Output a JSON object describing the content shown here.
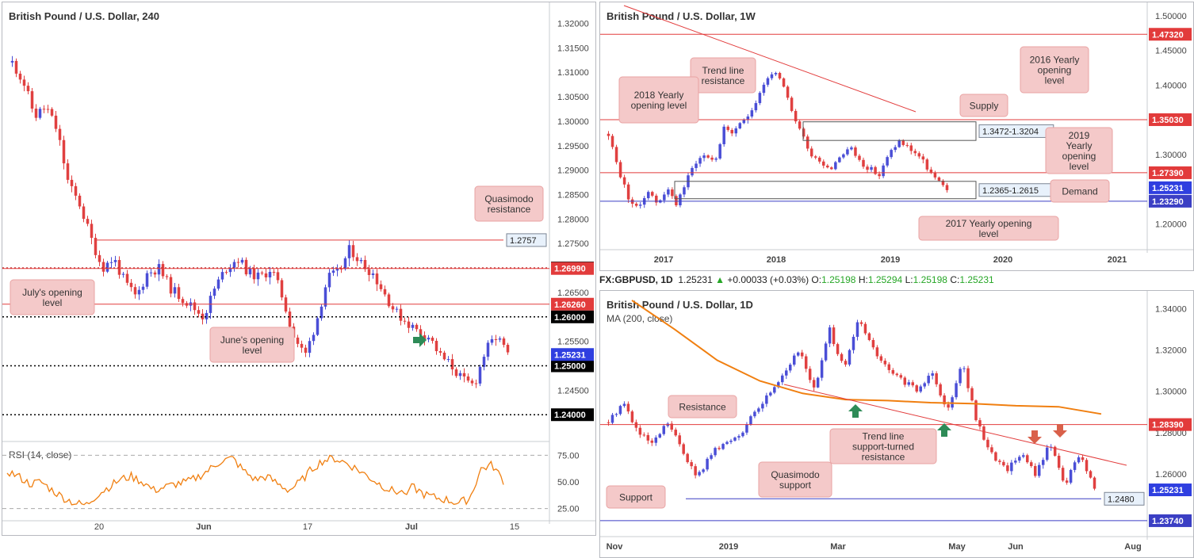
{
  "palette": {
    "up": "#4a4ed6",
    "down": "#e04040",
    "res": "#e23b3b",
    "sup": "#3b3fc4",
    "ma": "#f07f10",
    "rsi": "#f07f10",
    "label_fill": "#f4c9c9",
    "label_stroke": "#e9a3a3",
    "arrow_green": "#2e8b57",
    "arrow_red": "#d9604a"
  },
  "info_bar": {
    "symbol": "FX:GBPUSD, 1D",
    "last": "1.25231",
    "arrow": "▲",
    "change": "+0.00033 (+0.03%)",
    "o_label": "O:",
    "o": "1.25198",
    "h_label": "H:",
    "h": "1.25294",
    "l_label": "L:",
    "l": "1.25198",
    "c_label": "C:",
    "c": "1.25231"
  },
  "panels": {
    "left": {
      "title": "British Pound / U.S. Dollar, 240",
      "rsi_label": "RSI (14, close)"
    },
    "top_right": {
      "title": "British Pound / U.S. Dollar, 1W"
    },
    "bottom_right": {
      "title": "British Pound / U.S. Dollar, 1D",
      "ma_label": "MA (200, close)"
    }
  },
  "chart_data": [
    {
      "id": "h4",
      "type": "candlestick",
      "title": "British Pound / U.S. Dollar, 240",
      "ylim": [
        1.2355,
        1.323
      ],
      "y_ticks": [
        "1.32000",
        "1.31500",
        "1.31000",
        "1.30500",
        "1.30000",
        "1.29500",
        "1.29000",
        "1.28500",
        "1.28000",
        "1.27500",
        "1.27000",
        "1.26500",
        "1.26000",
        "1.25500",
        "1.25000",
        "1.24500",
        "1.24000"
      ],
      "x_ticks": [
        "20",
        "Jun",
        "17",
        "Jul",
        "15"
      ],
      "levels": [
        {
          "value": 1.2757,
          "label": "1.2757",
          "kind": "zone_box",
          "style": "solid",
          "color": "#e23b3b"
        },
        {
          "value": 1.27,
          "label": "1.27000",
          "style": "dotted",
          "color": "#b71c1c",
          "tag_bg": "#000000"
        },
        {
          "value": 1.2699,
          "label": "1.26990",
          "style": "solid",
          "color": "#e23b3b",
          "tag_bg": "#e23b3b"
        },
        {
          "value": 1.2626,
          "label": "1.26260",
          "style": "solid",
          "color": "#e23b3b",
          "tag_bg": "#e23b3b"
        },
        {
          "value": 1.26,
          "label": "1.26000",
          "style": "dotted",
          "color": "#000000",
          "tag_bg": "#000000"
        },
        {
          "value": 1.25,
          "label": "1.25000",
          "style": "dotted",
          "color": "#000000",
          "tag_bg": "#000000"
        },
        {
          "value": 1.24,
          "label": "1.24000",
          "style": "dotted",
          "color": "#000000",
          "tag_bg": "#000000"
        }
      ],
      "last": {
        "value": 1.25231,
        "label": "1.25231"
      },
      "annotations": [
        "Quasimodo resistance",
        "July's opening level",
        "June's opening level"
      ],
      "path": [
        1.312,
        1.308,
        1.301,
        1.303,
        1.298,
        1.287,
        1.283,
        1.276,
        1.27,
        1.272,
        1.267,
        1.264,
        1.269,
        1.27,
        1.266,
        1.264,
        1.262,
        1.26,
        1.266,
        1.27,
        1.272,
        1.269,
        1.268,
        1.27,
        1.264,
        1.256,
        1.252,
        1.259,
        1.268,
        1.269,
        1.274,
        1.271,
        1.269,
        1.265,
        1.261,
        1.259,
        1.257,
        1.256,
        1.252,
        1.25,
        1.247,
        1.246,
        1.253,
        1.256,
        1.2523
      ],
      "rsi": {
        "label": "RSI (14, close)",
        "ticks": [
          "75.00",
          "50.00",
          "25.00"
        ],
        "ylim": [
          15,
          85
        ],
        "values": [
          60,
          55,
          48,
          50,
          42,
          35,
          30,
          28,
          38,
          45,
          52,
          55,
          50,
          42,
          45,
          48,
          50,
          55,
          62,
          70,
          72,
          60,
          52,
          55,
          48,
          42,
          50,
          62,
          70,
          72,
          68,
          62,
          55,
          48,
          42,
          40,
          45,
          38,
          35,
          33,
          30,
          34,
          62,
          66,
          51
        ]
      }
    },
    {
      "id": "weekly",
      "type": "candlestick",
      "title": "British Pound / U.S. Dollar, 1W",
      "ylim": [
        1.17,
        1.51
      ],
      "y_ticks": [
        "1.50000",
        "1.45000",
        "1.40000",
        "1.35000",
        "1.30000",
        "1.25000",
        "1.20000"
      ],
      "x_ticks": [
        "2017",
        "2018",
        "2019",
        "2020",
        "2021"
      ],
      "levels": [
        {
          "value": 1.4732,
          "label": "1.47320",
          "style": "solid",
          "color": "#e23b3b",
          "tag_bg": "#e23b3b"
        },
        {
          "value": 1.3503,
          "label": "1.35030",
          "style": "solid",
          "color": "#e23b3b",
          "tag_bg": "#e23b3b"
        },
        {
          "value": 1.2739,
          "label": "1.27390",
          "style": "solid",
          "color": "#e23b3b",
          "tag_bg": "#e23b3b"
        },
        {
          "value": 1.2329,
          "label": "1.23290",
          "style": "solid",
          "color": "#3b3fc4",
          "tag_bg": "#3b3fc4"
        }
      ],
      "zones": [
        {
          "label": "1.3472-1.3204",
          "high": 1.3472,
          "low": 1.3204
        },
        {
          "label": "1.2365-1.2615",
          "high": 1.2615,
          "low": 1.2365
        }
      ],
      "last": {
        "value": 1.25231,
        "label": "1.25231"
      },
      "annotations": [
        "Trend line resistance",
        "2018 Yearly opening level",
        "2016 Yearly opening level",
        "Supply",
        "2019 Yearly opening level",
        "Demand",
        "2017 Yearly opening level"
      ],
      "path": [
        1.33,
        1.28,
        1.24,
        1.22,
        1.25,
        1.23,
        1.25,
        1.23,
        1.26,
        1.29,
        1.3,
        1.29,
        1.34,
        1.33,
        1.35,
        1.37,
        1.4,
        1.42,
        1.4,
        1.36,
        1.33,
        1.3,
        1.29,
        1.28,
        1.3,
        1.31,
        1.29,
        1.28,
        1.27,
        1.3,
        1.32,
        1.31,
        1.3,
        1.28,
        1.26,
        1.252
      ]
    },
    {
      "id": "daily",
      "type": "candlestick",
      "title": "British Pound / U.S. Dollar, 1D",
      "ylim": [
        1.232,
        1.3455
      ],
      "y_ticks": [
        "1.34000",
        "1.32000",
        "1.30000",
        "1.28000",
        "1.26000"
      ],
      "x_ticks": [
        "Nov",
        "2019",
        "Mar",
        "May",
        "Jun",
        "Aug"
      ],
      "levels": [
        {
          "value": 1.2839,
          "label": "1.28390",
          "style": "solid",
          "color": "#e23b3b",
          "tag_bg": "#e23b3b"
        },
        {
          "value": 1.248,
          "label": "1.2480",
          "kind": "zone_box",
          "style": "solid",
          "color": "#3b3fc4"
        },
        {
          "value": 1.2374,
          "label": "1.23740",
          "style": "solid",
          "color": "#3b3fc4",
          "tag_bg": "#3b3fc4"
        }
      ],
      "last": {
        "value": 1.25231,
        "label": "1.25231"
      },
      "ma": {
        "label": "MA (200, close)",
        "values": [
          1.344,
          1.33,
          1.315,
          1.305,
          1.299,
          1.296,
          1.2955,
          1.2945,
          1.294,
          1.293,
          1.2925,
          1.289
        ]
      },
      "annotations": [
        "Resistance",
        "Trend line support-turned resistance",
        "Quasimodo support",
        "Support"
      ],
      "path": [
        1.285,
        1.295,
        1.28,
        1.274,
        1.285,
        1.272,
        1.258,
        1.27,
        1.275,
        1.28,
        1.29,
        1.3,
        1.31,
        1.32,
        1.3,
        1.33,
        1.31,
        1.335,
        1.32,
        1.31,
        1.305,
        1.3,
        1.31,
        1.29,
        1.315,
        1.285,
        1.27,
        1.262,
        1.27,
        1.26,
        1.275,
        1.255,
        1.27,
        1.252
      ]
    }
  ]
}
